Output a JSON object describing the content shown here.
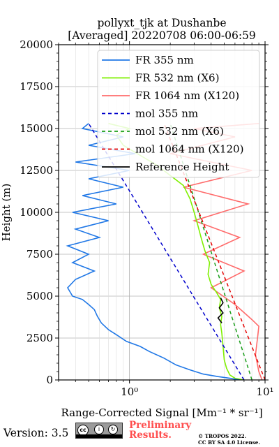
{
  "chart_data": {
    "type": "line",
    "title_line1": "pollyxt_tjk at Dushanbe",
    "title_line2": "[Averaged] 20220708 06:00-06:59",
    "xlabel": "Range-Corrected Signal [Mm⁻¹ * sr⁻¹]",
    "ylabel": "Height (m)",
    "xscale": "log",
    "xlim": [
      0.3,
      10
    ],
    "ylim": [
      0,
      20000
    ],
    "x_tick_labels": [
      "10⁰",
      "10¹"
    ],
    "x_ticks": [
      1,
      10
    ],
    "y_ticks": [
      0,
      2500,
      5000,
      7500,
      10000,
      12500,
      15000,
      17500,
      20000
    ],
    "y_tick_labels": [
      "0",
      "2500",
      "5000",
      "7500",
      "10000",
      "12500",
      "15000",
      "17500",
      "20000"
    ],
    "grid": true,
    "legend_position": "top-right",
    "series": [
      {
        "name": "FR 355 nm",
        "color": "#1f77e6",
        "style": "solid",
        "points": [
          [
            6.5,
            0
          ],
          [
            5.5,
            100
          ],
          [
            4.5,
            200
          ],
          [
            3.5,
            350
          ],
          [
            2.8,
            600
          ],
          [
            2.2,
            900
          ],
          [
            1.8,
            1300
          ],
          [
            1.4,
            1700
          ],
          [
            1.2,
            2000
          ],
          [
            0.95,
            2300
          ],
          [
            0.8,
            2700
          ],
          [
            0.7,
            3000
          ],
          [
            0.62,
            3400
          ],
          [
            0.58,
            3800
          ],
          [
            0.55,
            4200
          ],
          [
            0.5,
            4500
          ],
          [
            0.45,
            4800
          ],
          [
            0.38,
            5000
          ],
          [
            0.35,
            5500
          ],
          [
            0.4,
            6000
          ],
          [
            0.55,
            6500
          ],
          [
            0.38,
            7000
          ],
          [
            0.5,
            7500
          ],
          [
            0.35,
            8000
          ],
          [
            0.6,
            8500
          ],
          [
            0.4,
            9000
          ],
          [
            0.7,
            9500
          ],
          [
            0.38,
            10000
          ],
          [
            0.8,
            10500
          ],
          [
            0.45,
            11000
          ],
          [
            0.9,
            11500
          ],
          [
            0.5,
            12000
          ],
          [
            1.0,
            12500
          ],
          [
            0.4,
            13000
          ],
          [
            1.1,
            13500
          ],
          [
            0.5,
            14000
          ],
          [
            0.9,
            14500
          ],
          [
            0.45,
            15000
          ],
          [
            0.5,
            15300
          ]
        ]
      },
      {
        "name": "FR 532 nm (X6)",
        "color": "#7ff000",
        "style": "solid",
        "points": [
          [
            7.0,
            0
          ],
          [
            6.0,
            100
          ],
          [
            5.5,
            300
          ],
          [
            5.2,
            700
          ],
          [
            5.0,
            1200
          ],
          [
            4.9,
            2000
          ],
          [
            4.8,
            2800
          ],
          [
            4.7,
            3300
          ],
          [
            4.8,
            3800
          ],
          [
            4.6,
            4300
          ],
          [
            4.7,
            4800
          ],
          [
            4.4,
            5200
          ],
          [
            4.0,
            5700
          ],
          [
            3.8,
            6300
          ],
          [
            3.9,
            7000
          ],
          [
            3.6,
            7700
          ],
          [
            3.4,
            8400
          ],
          [
            3.2,
            9200
          ],
          [
            3.0,
            10000
          ],
          [
            2.8,
            10800
          ],
          [
            2.5,
            11600
          ],
          [
            2.0,
            12200
          ],
          [
            1.6,
            12800
          ],
          [
            1.2,
            13400
          ],
          [
            0.9,
            14000
          ],
          [
            0.8,
            14600
          ],
          [
            1.0,
            15000
          ],
          [
            0.7,
            15300
          ]
        ]
      },
      {
        "name": "FR 1064 nm (X120)",
        "color": "#ff6b6b",
        "style": "solid",
        "points": [
          [
            9.5,
            0
          ],
          [
            9.0,
            500
          ],
          [
            8.5,
            1500
          ],
          [
            8.8,
            2500
          ],
          [
            9.0,
            3200
          ],
          [
            8.0,
            3600
          ],
          [
            6.0,
            4500
          ],
          [
            4.0,
            5500
          ],
          [
            7.0,
            6500
          ],
          [
            3.5,
            7500
          ],
          [
            6.5,
            8500
          ],
          [
            3.0,
            9500
          ],
          [
            7.5,
            10500
          ],
          [
            2.5,
            11500
          ],
          [
            8.0,
            12500
          ],
          [
            2.0,
            13500
          ],
          [
            6.0,
            14500
          ],
          [
            3.0,
            15000
          ],
          [
            9.0,
            15300
          ]
        ]
      },
      {
        "name": "mol 355 nm",
        "color": "#0000cc",
        "style": "dashed",
        "points": [
          [
            7.0,
            0
          ],
          [
            0.5,
            15300
          ]
        ]
      },
      {
        "name": "mol 532 nm (X6)",
        "color": "#1a9e1a",
        "style": "dashed",
        "points": [
          [
            8.0,
            0
          ],
          [
            2.0,
            15300
          ]
        ]
      },
      {
        "name": "mol 1064 nm (X120)",
        "color": "#e60000",
        "style": "dashed",
        "points": [
          [
            10.0,
            0
          ],
          [
            1.8,
            15300
          ]
        ]
      },
      {
        "name": "Reference Height",
        "color": "#000000",
        "style": "solid",
        "points": [
          [
            4.8,
            3400
          ],
          [
            4.5,
            3700
          ],
          [
            4.9,
            4000
          ],
          [
            4.6,
            4300
          ],
          [
            4.9,
            4600
          ],
          [
            4.7,
            4900
          ]
        ]
      }
    ]
  },
  "footer": {
    "version": "Version: 3.5",
    "cc_label": "cc",
    "cc_by": "BY",
    "cc_sa": "SA",
    "preliminary_line1": "Preliminary",
    "preliminary_line2": "Results.",
    "copyright_line1": "© TROPOS 2022.",
    "copyright_line2": "CC BY SA 4.0 License."
  }
}
